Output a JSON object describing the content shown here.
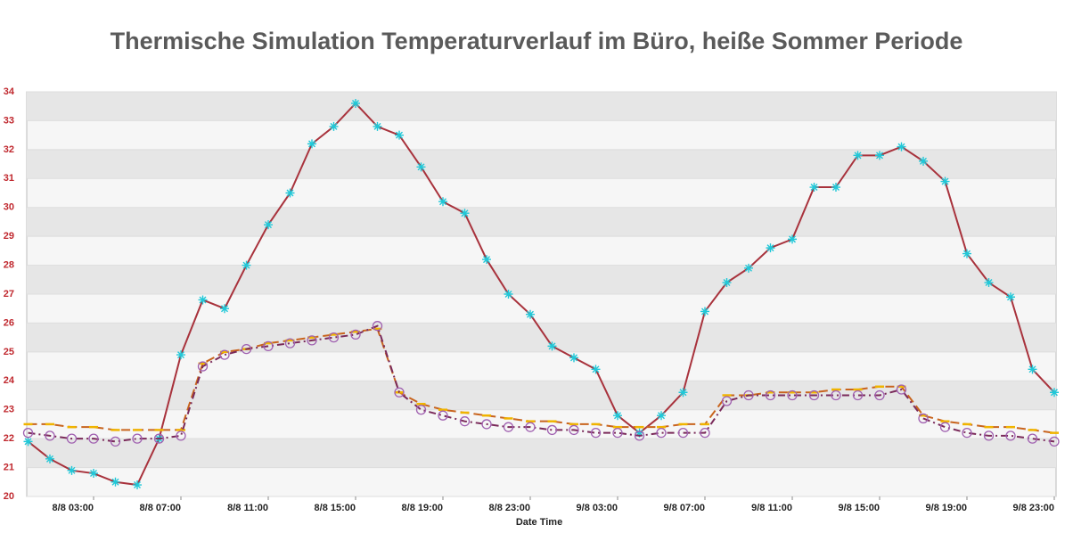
{
  "chart_data": {
    "type": "line",
    "title": "Thermische Simulation Temperaturverlauf im Büro, heiße Sommer Periode",
    "xlabel": "Date Time",
    "categories": [
      null,
      null,
      null,
      "8/8 03:00",
      null,
      null,
      null,
      "8/8 07:00",
      null,
      null,
      null,
      "8/8 11:00",
      null,
      null,
      null,
      "8/8 15:00",
      null,
      null,
      null,
      "8/8 19:00",
      null,
      null,
      null,
      "8/8 23:00",
      null,
      null,
      null,
      "9/8 03:00",
      null,
      null,
      null,
      "9/8 07:00",
      null,
      null,
      null,
      "9/8 11:00",
      null,
      null,
      null,
      "9/8 15:00",
      null,
      null,
      null,
      "9/8 19:00",
      null,
      null,
      null,
      "9/8 23:00"
    ],
    "ylim": [
      20,
      34
    ],
    "yticks": [
      20,
      21,
      22,
      23,
      24,
      25,
      26,
      27,
      28,
      29,
      30,
      31,
      32,
      33,
      34
    ],
    "grid": true,
    "series": [
      {
        "color": "#a8323c",
        "line_style": "solid",
        "marker": "star",
        "marker_color": "#20c8d8",
        "values": [
          21.9,
          21.3,
          20.9,
          20.8,
          20.5,
          20.4,
          22.0,
          24.9,
          26.8,
          26.5,
          28.0,
          29.4,
          30.5,
          32.2,
          32.8,
          33.6,
          32.8,
          32.5,
          31.4,
          30.2,
          29.8,
          28.2,
          27.0,
          26.3,
          25.2,
          24.8,
          24.4,
          22.8,
          22.2,
          22.8,
          23.6,
          26.4,
          27.4,
          27.9,
          28.6,
          28.9,
          30.7,
          30.7,
          31.8,
          31.8,
          32.1,
          31.6,
          30.9,
          28.4,
          27.4,
          26.9,
          24.4,
          23.6
        ]
      },
      {
        "color": "#c8641e",
        "line_style": "dashed",
        "marker": "dash",
        "marker_color": "#f0b400",
        "values": [
          22.5,
          22.5,
          22.4,
          22.4,
          22.3,
          22.3,
          22.3,
          22.3,
          24.6,
          25.0,
          25.1,
          25.3,
          25.4,
          25.5,
          25.6,
          25.7,
          25.8,
          23.6,
          23.2,
          23.0,
          22.9,
          22.8,
          22.7,
          22.6,
          22.6,
          22.5,
          22.5,
          22.4,
          22.4,
          22.4,
          22.5,
          22.5,
          23.5,
          23.5,
          23.6,
          23.6,
          23.6,
          23.7,
          23.7,
          23.8,
          23.8,
          22.8,
          22.6,
          22.5,
          22.4,
          22.4,
          22.3,
          22.2
        ]
      },
      {
        "color": "#7a2a5a",
        "line_style": "dashdot",
        "marker": "circle",
        "marker_color": "#a060b0",
        "values": [
          22.2,
          22.1,
          22.0,
          22.0,
          21.9,
          22.0,
          22.0,
          22.1,
          24.5,
          24.9,
          25.1,
          25.2,
          25.3,
          25.4,
          25.5,
          25.6,
          25.9,
          23.6,
          23.0,
          22.8,
          22.6,
          22.5,
          22.4,
          22.4,
          22.3,
          22.3,
          22.2,
          22.2,
          22.1,
          22.2,
          22.2,
          22.2,
          23.3,
          23.5,
          23.5,
          23.5,
          23.5,
          23.5,
          23.5,
          23.5,
          23.7,
          22.7,
          22.4,
          22.2,
          22.1,
          22.1,
          22.0,
          21.9
        ]
      }
    ]
  }
}
